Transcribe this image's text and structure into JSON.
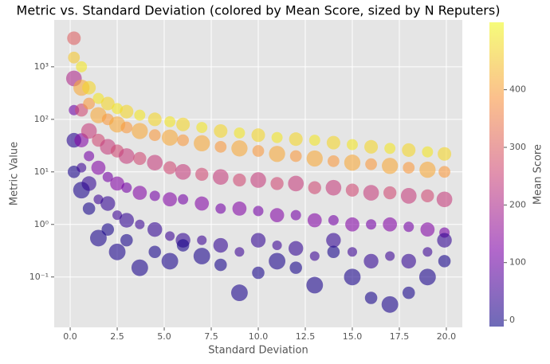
{
  "chart_data": {
    "type": "scatter",
    "title": "Metric vs. Standard Deviation (colored by Mean Score, sized by N Reputers)",
    "x_label": "Standard Deviation",
    "y_label": "Metric Value",
    "xlim": [
      -0.85,
      20.85
    ],
    "xticks": [
      {
        "value": 0,
        "label": "0.0"
      },
      2.5,
      {
        "value": 5,
        "label": "5.0"
      },
      7.5,
      {
        "value": 10,
        "label": "10.0"
      },
      12.5,
      {
        "value": 15,
        "label": "15.0"
      },
      17.5,
      {
        "value": 20,
        "label": "20.0"
      }
    ],
    "ylim": [
      0.011,
      7800
    ],
    "yscale": "log",
    "yticks": [
      {
        "value": 0.1,
        "label": "10⁻¹"
      },
      {
        "value": 1,
        "label": "10⁰"
      },
      {
        "value": 10,
        "label": "10¹"
      },
      {
        "value": 100,
        "label": "10²"
      },
      {
        "value": 1000,
        "label": "10³"
      }
    ],
    "grid": true,
    "alpha": 0.6,
    "colorbar": {
      "label": "Mean Score",
      "lim": [
        -11,
        517
      ],
      "ticks": [
        0,
        100,
        200,
        300,
        400
      ],
      "colormap": "plasma"
    },
    "x": [
      0.2,
      0.2,
      0.2,
      0.2,
      0.2,
      0.2,
      0.6,
      0.6,
      0.6,
      0.6,
      0.6,
      0.6,
      1.0,
      1.0,
      1.0,
      1.0,
      1.0,
      1.0,
      1.5,
      1.5,
      1.5,
      1.5,
      1.5,
      1.5,
      2.0,
      2.0,
      2.0,
      2.0,
      2.0,
      2.0,
      2.5,
      2.5,
      2.5,
      2.5,
      2.5,
      2.5,
      3.0,
      3.0,
      3.0,
      3.0,
      3.0,
      3.0,
      3.7,
      3.7,
      3.7,
      3.7,
      3.7,
      3.7,
      4.5,
      4.5,
      4.5,
      4.5,
      4.5,
      4.5,
      5.3,
      5.3,
      5.3,
      5.3,
      5.3,
      5.3,
      6.0,
      6.0,
      6.0,
      6.0,
      6.0,
      6.0,
      7.0,
      7.0,
      7.0,
      7.0,
      7.0,
      7.0,
      8.0,
      8.0,
      8.0,
      8.0,
      8.0,
      8.0,
      9.0,
      9.0,
      9.0,
      9.0,
      9.0,
      9.0,
      10.0,
      10.0,
      10.0,
      10.0,
      10.0,
      10.0,
      11.0,
      11.0,
      11.0,
      11.0,
      11.0,
      11.0,
      12.0,
      12.0,
      12.0,
      12.0,
      12.0,
      12.0,
      13.0,
      13.0,
      13.0,
      13.0,
      13.0,
      13.0,
      14.0,
      14.0,
      14.0,
      14.0,
      14.0,
      14.0,
      15.0,
      15.0,
      15.0,
      15.0,
      15.0,
      15.0,
      16.0,
      16.0,
      16.0,
      16.0,
      16.0,
      16.0,
      17.0,
      17.0,
      17.0,
      17.0,
      17.0,
      17.0,
      18.0,
      18.0,
      18.0,
      18.0,
      18.0,
      18.0,
      19.0,
      19.0,
      19.0,
      19.0,
      19.0,
      19.0,
      19.9,
      19.9,
      19.9,
      19.9,
      19.9,
      19.9
    ],
    "y": [
      3500,
      1500,
      600,
      150,
      40,
      10,
      1000,
      400,
      150,
      40,
      12,
      4.5,
      400,
      200,
      60,
      20,
      6,
      2,
      250,
      120,
      40,
      12,
      3,
      0.55,
      200,
      100,
      30,
      8,
      2.5,
      0.8,
      160,
      80,
      25,
      6,
      1.5,
      0.3,
      140,
      70,
      20,
      5,
      1.2,
      0.5,
      120,
      60,
      18,
      4,
      1,
      0.15,
      100,
      50,
      15,
      3.5,
      0.8,
      0.3,
      90,
      45,
      12,
      3,
      0.6,
      0.2,
      80,
      40,
      10,
      3,
      0.5,
      0.4,
      70,
      35,
      9,
      2.5,
      0.5,
      0.25,
      60,
      30,
      8,
      2,
      0.4,
      0.17,
      55,
      28,
      7,
      2,
      0.3,
      0.05,
      50,
      25,
      7,
      1.8,
      0.5,
      0.12,
      45,
      22,
      6,
      1.5,
      0.4,
      0.2,
      42,
      20,
      6,
      1.5,
      0.35,
      0.15,
      40,
      18,
      5,
      1.2,
      0.25,
      0.07,
      36,
      16,
      5,
      1.2,
      0.5,
      0.3,
      33,
      15,
      4.5,
      1,
      0.3,
      0.1,
      30,
      14,
      4,
      1,
      0.2,
      0.04,
      28,
      13,
      4,
      1,
      0.25,
      0.03,
      26,
      12,
      3.5,
      0.9,
      0.2,
      0.05,
      24,
      11,
      3.5,
      0.8,
      0.3,
      0.1,
      22,
      10,
      3,
      0.7,
      0.5,
      0.2
    ],
    "sizes": [
      60,
      45,
      80,
      35,
      70,
      50,
      40,
      85,
      55,
      65,
      30,
      90,
      60,
      45,
      80,
      35,
      70,
      50,
      40,
      85,
      55,
      65,
      30,
      90,
      60,
      45,
      80,
      35,
      70,
      50,
      40,
      85,
      55,
      65,
      30,
      90,
      60,
      45,
      80,
      35,
      70,
      50,
      40,
      85,
      55,
      65,
      30,
      90,
      60,
      45,
      80,
      35,
      70,
      50,
      40,
      85,
      55,
      65,
      30,
      90,
      60,
      45,
      80,
      35,
      70,
      50,
      40,
      85,
      55,
      65,
      30,
      90,
      60,
      45,
      80,
      35,
      70,
      50,
      40,
      85,
      55,
      65,
      30,
      90,
      60,
      45,
      80,
      35,
      70,
      50,
      40,
      85,
      55,
      65,
      30,
      90,
      60,
      45,
      80,
      35,
      70,
      50,
      40,
      85,
      55,
      65,
      30,
      90,
      60,
      45,
      80,
      35,
      70,
      50,
      40,
      85,
      55,
      65,
      30,
      90,
      60,
      45,
      80,
      35,
      70,
      50,
      40,
      85,
      55,
      65,
      30,
      90,
      60,
      45,
      80,
      35,
      70,
      50,
      40,
      85,
      55,
      65,
      30,
      90,
      60,
      45,
      80,
      35,
      70,
      50
    ],
    "color_values": [
      300,
      450,
      200,
      100,
      20,
      5,
      490,
      410,
      260,
      130,
      45,
      8,
      470,
      390,
      240,
      110,
      35,
      3,
      490,
      410,
      260,
      130,
      45,
      8,
      470,
      390,
      240,
      110,
      35,
      3,
      490,
      410,
      260,
      130,
      45,
      8,
      470,
      390,
      240,
      110,
      35,
      3,
      490,
      410,
      260,
      130,
      45,
      8,
      470,
      390,
      240,
      110,
      35,
      3,
      490,
      410,
      260,
      130,
      45,
      8,
      470,
      390,
      240,
      110,
      35,
      3,
      490,
      410,
      260,
      130,
      45,
      8,
      470,
      390,
      240,
      110,
      35,
      3,
      490,
      410,
      260,
      130,
      45,
      8,
      470,
      390,
      240,
      110,
      35,
      3,
      490,
      410,
      260,
      130,
      45,
      8,
      470,
      390,
      240,
      110,
      35,
      3,
      490,
      410,
      260,
      130,
      45,
      8,
      470,
      390,
      240,
      110,
      35,
      3,
      490,
      410,
      260,
      130,
      45,
      8,
      470,
      390,
      240,
      110,
      35,
      3,
      490,
      410,
      260,
      130,
      45,
      8,
      470,
      390,
      240,
      110,
      35,
      3,
      490,
      410,
      260,
      130,
      45,
      8,
      470,
      390,
      240,
      110,
      35,
      3
    ]
  }
}
